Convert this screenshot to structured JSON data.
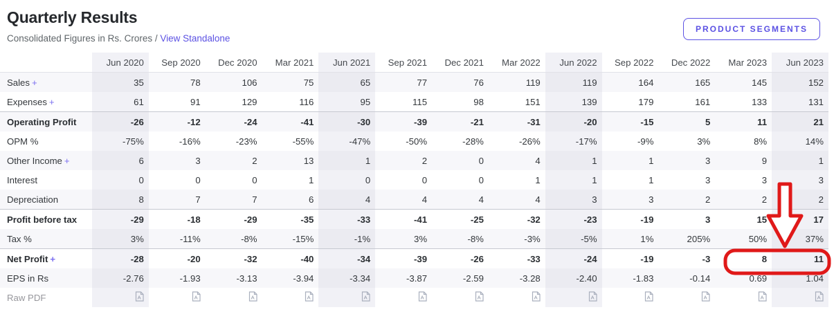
{
  "page": {
    "title": "Quarterly Results",
    "subtitle_prefix": "Consolidated Figures in Rs. Crores /",
    "standalone_link": "View Standalone",
    "segments_button": "PRODUCT SEGMENTS"
  },
  "colors": {
    "accent_purple": "#5b51e3",
    "annotation_red": "#e01919"
  },
  "table": {
    "columns": [
      "Jun 2020",
      "Sep 2020",
      "Dec 2020",
      "Mar 2021",
      "Jun 2021",
      "Sep 2021",
      "Dec 2021",
      "Mar 2022",
      "Jun 2022",
      "Sep 2022",
      "Dec 2022",
      "Mar 2023",
      "Jun 2023"
    ],
    "highlighted_columns": [
      0,
      4,
      8,
      12
    ],
    "rows": [
      {
        "label": "Sales",
        "expand": "+",
        "strong": false,
        "values": [
          "35",
          "78",
          "106",
          "75",
          "65",
          "77",
          "76",
          "119",
          "119",
          "164",
          "165",
          "145",
          "152"
        ]
      },
      {
        "label": "Expenses",
        "expand": "+",
        "strong": false,
        "values": [
          "61",
          "91",
          "129",
          "116",
          "95",
          "115",
          "98",
          "151",
          "139",
          "179",
          "161",
          "133",
          "131"
        ]
      },
      {
        "label": "Operating Profit",
        "strong": true,
        "values": [
          "-26",
          "-12",
          "-24",
          "-41",
          "-30",
          "-39",
          "-21",
          "-31",
          "-20",
          "-15",
          "5",
          "11",
          "21"
        ]
      },
      {
        "label": "OPM %",
        "strong": false,
        "values": [
          "-75%",
          "-16%",
          "-23%",
          "-55%",
          "-47%",
          "-50%",
          "-28%",
          "-26%",
          "-17%",
          "-9%",
          "3%",
          "8%",
          "14%"
        ]
      },
      {
        "label": "Other Income",
        "expand": "+",
        "strong": false,
        "values": [
          "6",
          "3",
          "2",
          "13",
          "1",
          "2",
          "0",
          "4",
          "1",
          "1",
          "3",
          "9",
          "1"
        ]
      },
      {
        "label": "Interest",
        "strong": false,
        "values": [
          "0",
          "0",
          "0",
          "1",
          "0",
          "0",
          "0",
          "1",
          "1",
          "1",
          "3",
          "3",
          "3"
        ]
      },
      {
        "label": "Depreciation",
        "strong": false,
        "values": [
          "8",
          "7",
          "7",
          "6",
          "4",
          "4",
          "4",
          "4",
          "3",
          "3",
          "2",
          "2",
          "2"
        ]
      },
      {
        "label": "Profit before tax",
        "strong": true,
        "values": [
          "-29",
          "-18",
          "-29",
          "-35",
          "-33",
          "-41",
          "-25",
          "-32",
          "-23",
          "-19",
          "3",
          "15",
          "17"
        ]
      },
      {
        "label": "Tax %",
        "strong": false,
        "values": [
          "3%",
          "-11%",
          "-8%",
          "-15%",
          "-1%",
          "3%",
          "-8%",
          "-3%",
          "-5%",
          "1%",
          "205%",
          "50%",
          "37%"
        ]
      },
      {
        "label": "Net Profit",
        "expand": "+",
        "strong": true,
        "values": [
          "-28",
          "-20",
          "-32",
          "-40",
          "-34",
          "-39",
          "-26",
          "-33",
          "-24",
          "-19",
          "-3",
          "8",
          "11"
        ]
      },
      {
        "label": "EPS in Rs",
        "strong": false,
        "values": [
          "-2.76",
          "-1.93",
          "-3.13",
          "-3.94",
          "-3.34",
          "-3.87",
          "-2.59",
          "-3.28",
          "-2.40",
          "-1.83",
          "-0.14",
          "0.69",
          "1.04"
        ]
      },
      {
        "label": "Raw PDF",
        "type": "pdf",
        "strong": false,
        "icon": "pdf-file-icon"
      }
    ]
  },
  "annotation": {
    "type": "arrow-and-box",
    "color": "#e01919",
    "highlights": "Net Profit for Mar 2023 and Jun 2023 (8 and 11)"
  }
}
